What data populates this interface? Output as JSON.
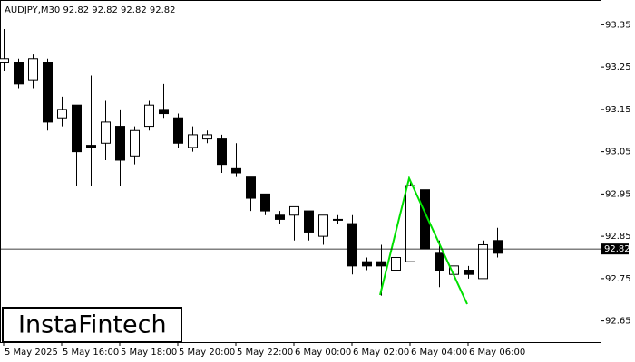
{
  "chart_data": {
    "type": "candlestick",
    "title": "AUDJPY,M30  92.82 92.82 92.82 92.82",
    "categories": [
      "5 May 2025",
      null,
      null,
      null,
      "5 May 16:00",
      null,
      null,
      null,
      "5 May 18:00",
      null,
      null,
      null,
      "5 May 20:00",
      null,
      null,
      null,
      "5 May 22:00",
      null,
      null,
      null,
      "6 May 00:00",
      null,
      null,
      null,
      "6 May 02:00",
      null,
      null,
      null,
      "6 May 04:00",
      null,
      null,
      null,
      "6 May 06:00",
      null,
      null
    ],
    "open": [
      93.26,
      93.26,
      93.22,
      93.26,
      93.13,
      93.16,
      93.065,
      93.07,
      93.11,
      93.04,
      93.11,
      93.15,
      93.13,
      93.06,
      93.08,
      93.08,
      93.01,
      92.99,
      92.95,
      92.9,
      92.9,
      92.91,
      92.85,
      92.89,
      92.88,
      92.79,
      92.79,
      92.77,
      92.79,
      92.96,
      92.81,
      92.76,
      92.77,
      92.75,
      92.84
    ],
    "high": [
      93.34,
      93.27,
      93.28,
      93.27,
      93.18,
      93.16,
      93.23,
      93.17,
      93.15,
      93.11,
      93.17,
      93.21,
      93.14,
      93.11,
      93.1,
      93.09,
      93.07,
      92.99,
      92.95,
      92.91,
      92.92,
      92.91,
      92.9,
      92.9,
      92.9,
      92.8,
      92.83,
      92.82,
      92.98,
      92.96,
      92.84,
      92.8,
      92.78,
      92.84,
      92.87
    ],
    "low": [
      93.24,
      93.2,
      93.2,
      93.1,
      93.11,
      92.97,
      92.97,
      93.03,
      92.97,
      93.02,
      93.1,
      93.13,
      93.06,
      93.05,
      93.07,
      93.0,
      92.99,
      92.91,
      92.9,
      92.88,
      92.84,
      92.84,
      92.83,
      92.88,
      92.76,
      92.77,
      92.71,
      92.71,
      92.79,
      92.82,
      92.73,
      92.74,
      92.75,
      92.75,
      92.8
    ],
    "close": [
      93.27,
      93.21,
      93.27,
      93.12,
      93.15,
      93.05,
      93.06,
      93.12,
      93.03,
      93.1,
      93.16,
      93.14,
      93.07,
      93.09,
      93.09,
      93.02,
      93.0,
      92.94,
      92.91,
      92.89,
      92.92,
      92.86,
      92.9,
      92.89,
      92.78,
      92.78,
      92.78,
      92.8,
      92.97,
      92.82,
      92.77,
      92.78,
      92.76,
      92.83,
      92.81
    ],
    "up_color": "#ffffff",
    "down_color": "#000000",
    "ylim": [
      92.6,
      93.4
    ],
    "yticks": [
      92.65,
      92.75,
      92.85,
      92.95,
      93.05,
      93.15,
      93.25,
      93.35
    ],
    "last_price": 92.82
  },
  "logo": "InstaFintech"
}
